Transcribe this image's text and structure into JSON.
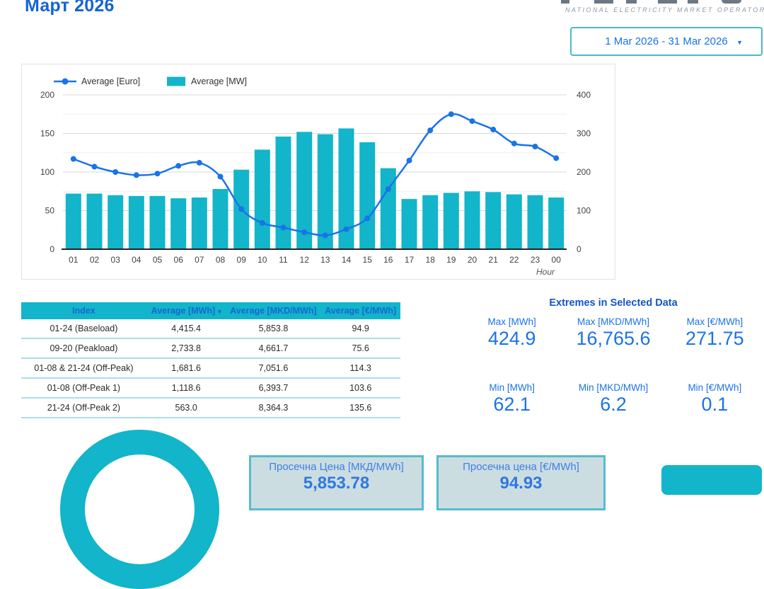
{
  "page": {
    "title": "Март 2026"
  },
  "logo": {
    "subtitle": "NATIONAL ELECTRICITY MARKET OPERATOR"
  },
  "date_range": {
    "value": "1 Mar 2026 - 31 Mar 2026",
    "caret": "▼"
  },
  "chart_data": {
    "type": "bar+line combo",
    "title": "",
    "categories": [
      "01",
      "02",
      "03",
      "04",
      "05",
      "06",
      "07",
      "08",
      "09",
      "10",
      "11",
      "12",
      "13",
      "14",
      "15",
      "16",
      "17",
      "18",
      "19",
      "20",
      "21",
      "22",
      "23",
      "00"
    ],
    "xlabel": "Hour",
    "grid": true,
    "legend_position": "top",
    "left_axis": {
      "range": [
        0,
        200
      ],
      "ticks": [
        0,
        50,
        100,
        150,
        200
      ],
      "minor_ticks": [
        25,
        75,
        125,
        175
      ]
    },
    "right_axis": {
      "range": [
        0,
        400
      ],
      "ticks": [
        0,
        100,
        200,
        300,
        400
      ]
    },
    "series": [
      {
        "name": "Average [Euro]",
        "type": "line",
        "axis": "left",
        "color": "#1a73e8",
        "values": [
          117,
          107,
          100,
          96,
          98,
          108,
          112,
          94,
          52,
          34,
          28,
          22,
          18,
          26,
          40,
          78,
          115,
          154,
          175,
          166,
          155,
          137,
          133,
          118
        ]
      },
      {
        "name": "Average [MW]",
        "type": "bar",
        "axis": "right",
        "color": "#12b5c9",
        "values": [
          144,
          144,
          140,
          138,
          138,
          132,
          134,
          156,
          206,
          258,
          292,
          304,
          298,
          313,
          277,
          210,
          130,
          140,
          146,
          150,
          148,
          142,
          140,
          134
        ]
      }
    ]
  },
  "table": {
    "headers": [
      "Index",
      "Average [MWh]",
      "Average [MKD/MWh]",
      "Average [€/MWh]"
    ],
    "sort_column_index": 1,
    "sort_caret": "▾",
    "rows": [
      [
        "01-24 (Baseload)",
        "4,415.4",
        "5,853.8",
        "94.9"
      ],
      [
        "09-20 (Peakload)",
        "2,733.8",
        "4,661.7",
        "75.6"
      ],
      [
        "01-08 & 21-24 (Off-Peak)",
        "1,681.6",
        "7,051.6",
        "114.3"
      ],
      [
        "01-08 (Off-Peak 1)",
        "1,118.6",
        "6,393.7",
        "103.6"
      ],
      [
        "21-24 (Off-Peak 2)",
        "563.0",
        "8,364.3",
        "135.6"
      ]
    ]
  },
  "extremes": {
    "title": "Extremes in Selected Data",
    "items": [
      {
        "label": "Max [MWh]",
        "value": "424.9"
      },
      {
        "label": "Max [MKD/MWh]",
        "value": "16,765.6"
      },
      {
        "label": "Max [€/MWh]",
        "value": "271.75"
      },
      {
        "label": "Min [MWh]",
        "value": "62.1"
      },
      {
        "label": "Min [MKD/MWh]",
        "value": "6.2"
      },
      {
        "label": "Min [€/MWh]",
        "value": "0.1"
      }
    ]
  },
  "bottom": {
    "mkd_box": {
      "label": "Просечна Цена [МКД/MWh]",
      "value": "5,853.78"
    },
    "eur_box": {
      "label": "Просечна цена [€/MWh]",
      "value": "94.93"
    }
  },
  "colors": {
    "teal": "#12b5c9",
    "blue": "#1a73e8",
    "title_blue": "#1563d6"
  }
}
